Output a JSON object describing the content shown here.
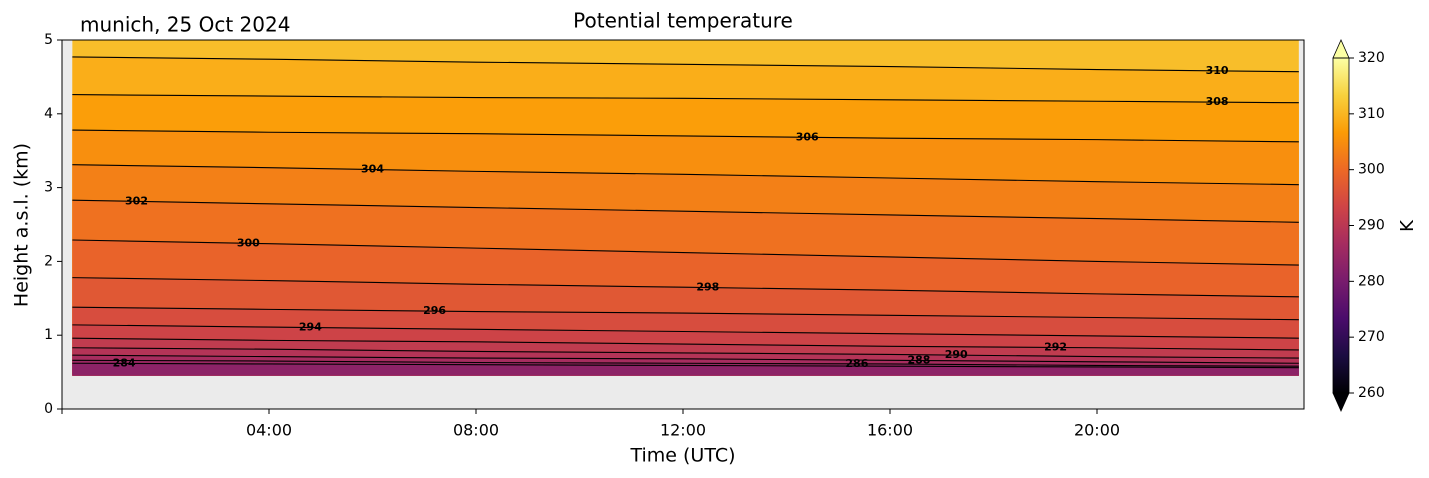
{
  "chart_data": {
    "type": "contour",
    "title": "Potential temperature",
    "annotation": "munich, 25 Oct 2024",
    "xlabel": "Time (UTC)",
    "ylabel": "Height a.s.l. (km)",
    "xlim": [
      0,
      24
    ],
    "xticks": [
      {
        "value": 4,
        "label": "04:00"
      },
      {
        "value": 8,
        "label": "08:00"
      },
      {
        "value": 12,
        "label": "12:00"
      },
      {
        "value": 16,
        "label": "16:00"
      },
      {
        "value": 20,
        "label": "20:00"
      }
    ],
    "ylim": [
      0,
      5
    ],
    "yticks": [
      0,
      1,
      2,
      3,
      4,
      5
    ],
    "x": [
      0.2,
      4,
      8,
      12,
      16,
      20,
      23.9
    ],
    "contours": [
      {
        "level": 310,
        "values": [
          4.77,
          4.74,
          4.7,
          4.67,
          4.64,
          4.6,
          4.57
        ]
      },
      {
        "level": 308,
        "values": [
          4.26,
          4.24,
          4.22,
          4.21,
          4.19,
          4.17,
          4.15
        ]
      },
      {
        "level": 306,
        "values": [
          3.78,
          3.75,
          3.73,
          3.7,
          3.67,
          3.65,
          3.62
        ]
      },
      {
        "level": 304,
        "values": [
          3.31,
          3.27,
          3.22,
          3.18,
          3.13,
          3.08,
          3.04
        ]
      },
      {
        "level": 302,
        "values": [
          2.83,
          2.78,
          2.73,
          2.68,
          2.63,
          2.58,
          2.53
        ]
      },
      {
        "level": 300,
        "values": [
          2.29,
          2.24,
          2.18,
          2.12,
          2.06,
          2.0,
          1.95
        ]
      },
      {
        "level": 298,
        "values": [
          1.78,
          1.74,
          1.69,
          1.65,
          1.61,
          1.56,
          1.52
        ]
      },
      {
        "level": 296,
        "values": [
          1.38,
          1.35,
          1.32,
          1.3,
          1.27,
          1.24,
          1.21
        ]
      },
      {
        "level": 294,
        "values": [
          1.14,
          1.11,
          1.08,
          1.05,
          1.02,
          0.99,
          0.96
        ]
      },
      {
        "level": 292,
        "values": [
          0.96,
          0.93,
          0.91,
          0.88,
          0.85,
          0.83,
          0.8
        ]
      },
      {
        "level": 290,
        "values": [
          0.83,
          0.81,
          0.78,
          0.76,
          0.74,
          0.71,
          0.69
        ]
      },
      {
        "level": 288,
        "values": [
          0.73,
          0.71,
          0.69,
          0.68,
          0.66,
          0.64,
          0.62
        ]
      },
      {
        "level": 286,
        "values": [
          0.66,
          0.65,
          0.63,
          0.62,
          0.61,
          0.59,
          0.58
        ]
      },
      {
        "level": 284,
        "values": [
          0.62,
          0.61,
          0.6,
          0.59,
          0.58,
          0.57,
          0.56
        ]
      }
    ],
    "colormap": [
      "#000004",
      "#1b0c41",
      "#4a0c6b",
      "#781c6d",
      "#a52c60",
      "#cf4446",
      "#ed6925",
      "#fb9b06",
      "#f7d13d",
      "#fcffa4"
    ],
    "clim": [
      260,
      320
    ],
    "colorbar_ticks": [
      260,
      270,
      280,
      290,
      300,
      310,
      320
    ],
    "colorbar_label": "K"
  }
}
